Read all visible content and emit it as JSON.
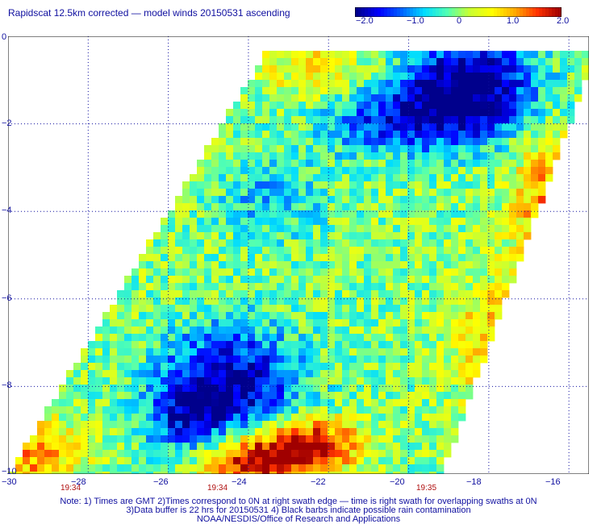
{
  "title": "Rapidscat 12.5km corrected — model winds 20150531 ascending",
  "colorbar": {
    "tick_labels": [
      "−2.0",
      "−1.0",
      "0",
      "1.0",
      "2.0"
    ],
    "colors": [
      "#00008c",
      "#0000ff",
      "#0064ff",
      "#00dcff",
      "#50ffb4",
      "#c8ff32",
      "#ffff00",
      "#ffaa00",
      "#ff3200",
      "#a00000"
    ]
  },
  "x_ticks": [
    "−30",
    "−28",
    "−26",
    "−24",
    "−22",
    "−20",
    "−18",
    "−16"
  ],
  "y_ticks": [
    "0",
    "−2",
    "−4",
    "−6",
    "−8",
    "−10"
  ],
  "time_labels": [
    "19:34",
    "19:34",
    "19:35"
  ],
  "notes": {
    "line1": "Note: 1) Times are GMT 2)Times correspond to 0N at right swath edge — time is right swath for overlapping swaths at 0N",
    "line2": "3)Data buffer is 22 hrs for 20150531 4) Black barbs indicate possible rain contamination",
    "line3": "NOAA/NESDIS/Office of Research and Applications"
  },
  "map_data": {
    "type": "heatmap",
    "variable": "wind speed difference (corrected − model)",
    "color_range": [
      -2.0,
      2.0
    ],
    "lon_range": [
      -30,
      -15.5
    ],
    "lat_range": [
      -10,
      0
    ],
    "grid": "dotted",
    "swath_description": "diagonal ascending swath, mostly near-zero differences (green/cyan) with negative (blue) patches near -23 to -26 lon, -7 to -9 lat and positive (red) patches near -24 lon, -9 to -10 lat"
  }
}
